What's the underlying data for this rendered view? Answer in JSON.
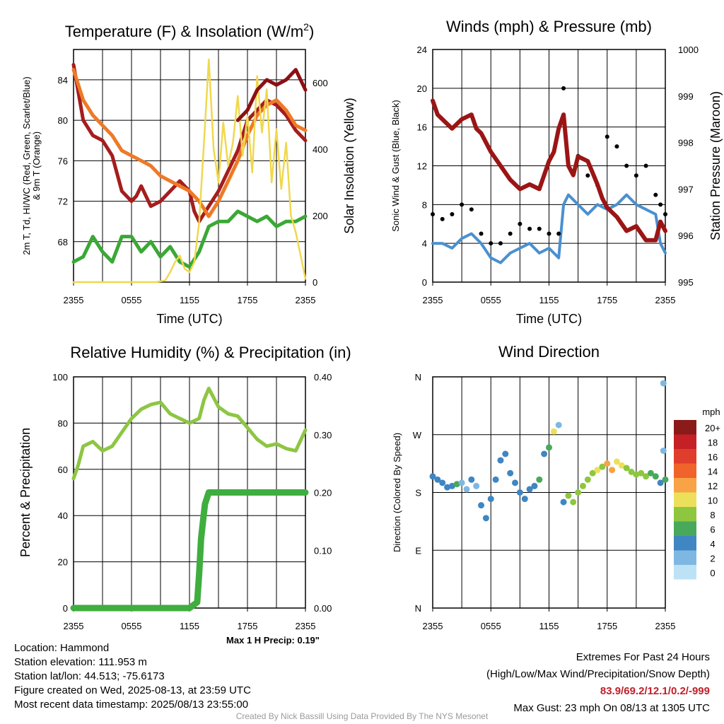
{
  "chart_data": [
    {
      "type": "line",
      "title": "Temperature (F) & Insolation (W/m²)",
      "xlabel": "Time (UTC)",
      "ylabel": "2m T, Td, HI/WC (Red, Green, Scarlet/Blue) & 9m T (Orange)",
      "y2label": "Solar Insolation (Yellow)",
      "x_ticks": [
        "2355",
        "0555",
        "1155",
        "1755",
        "2355"
      ],
      "y_ticks": [
        68,
        72,
        76,
        80,
        84
      ],
      "y2_ticks": [
        0,
        200,
        400,
        600
      ],
      "ylim": [
        64,
        87
      ],
      "y2lim": [
        0,
        700
      ],
      "grid": true,
      "series": [
        {
          "name": "2m T",
          "color": "#a51d1d",
          "axis": "left",
          "x": [
            0,
            1,
            2,
            3,
            4,
            5,
            6,
            6.5,
            7,
            8,
            9,
            10,
            10.5,
            11,
            12,
            12.5,
            13,
            14,
            15,
            16,
            17,
            18,
            19,
            20,
            21,
            22,
            23,
            24
          ],
          "values": [
            85.5,
            80,
            78.5,
            78,
            76.5,
            73,
            72,
            72.5,
            73.5,
            71.5,
            72,
            73,
            73.5,
            74,
            73,
            71,
            70,
            71.5,
            73,
            75,
            77,
            80,
            81,
            82,
            81.5,
            80.5,
            79,
            78
          ]
        },
        {
          "name": "9m T",
          "color": "#ee7a27",
          "axis": "left",
          "x": [
            0,
            1,
            2,
            3,
            4,
            5,
            6,
            7,
            8,
            9,
            10,
            11,
            12,
            13,
            14,
            15,
            16,
            17,
            18,
            19,
            20,
            21,
            22,
            23,
            24
          ],
          "values": [
            85,
            82,
            80.5,
            79.5,
            78.5,
            77,
            76.5,
            76,
            75.5,
            74.5,
            74,
            73.5,
            73,
            72,
            70.5,
            72,
            74,
            76,
            78.5,
            80.5,
            81.5,
            82,
            81,
            79.5,
            79
          ]
        },
        {
          "name": "Td",
          "color": "#3aa835",
          "axis": "left",
          "x": [
            0,
            1,
            2,
            3,
            4,
            5,
            6,
            7,
            8,
            9,
            10,
            11,
            12,
            13,
            14,
            15,
            16,
            17,
            18,
            19,
            20,
            21,
            22,
            23,
            24
          ],
          "values": [
            66,
            66.5,
            68.5,
            67,
            66,
            68.5,
            68.5,
            67,
            68,
            66.5,
            67.5,
            66,
            65.5,
            67,
            69.5,
            70,
            70,
            71,
            70.5,
            70,
            70.5,
            69.5,
            70,
            70,
            70.5
          ]
        },
        {
          "name": "Solar Insolation",
          "color": "#f0d84e",
          "axis": "right",
          "x": [
            0,
            8.5,
            9.5,
            10,
            10.5,
            11,
            11.5,
            12,
            12.5,
            13,
            13.5,
            14,
            14.5,
            15,
            15.5,
            16,
            16.5,
            17,
            17.5,
            18,
            18.5,
            19,
            19.5,
            20,
            20.5,
            21,
            21.5,
            22,
            22.5,
            23,
            23.5,
            24
          ],
          "values": [
            0,
            0,
            5,
            30,
            60,
            80,
            40,
            30,
            60,
            180,
            420,
            670,
            400,
            300,
            480,
            350,
            420,
            560,
            380,
            500,
            330,
            620,
            450,
            580,
            300,
            460,
            280,
            420,
            200,
            150,
            80,
            10
          ]
        },
        {
          "name": "Max Wet-bulb",
          "color": "#8b1014",
          "axis": "left",
          "x": [
            17,
            18,
            19,
            20,
            21,
            22,
            23,
            24
          ],
          "values": [
            80,
            81,
            83,
            84,
            83.5,
            84,
            85,
            83
          ]
        }
      ]
    },
    {
      "type": "line",
      "title": "Winds (mph) & Pressure (mb)",
      "xlabel": "Time (UTC)",
      "ylabel": "Sonic Wind & Gust (Blue, Black)",
      "y2label": "Station Pressure (Maroon)",
      "x_ticks": [
        "2355",
        "0555",
        "1155",
        "1755",
        "2355"
      ],
      "y_ticks": [
        0,
        4,
        8,
        12,
        16,
        20,
        24
      ],
      "y2_ticks": [
        995,
        996,
        997,
        998,
        999,
        1000
      ],
      "ylim": [
        0,
        24
      ],
      "y2lim": [
        995,
        1000
      ],
      "grid": true,
      "series": [
        {
          "name": "Sonic Wind",
          "color": "#4a90d0",
          "axis": "left",
          "x": [
            0,
            1,
            2,
            3,
            4,
            5,
            6,
            7,
            8,
            9,
            10,
            11,
            12,
            13,
            13.5,
            14,
            15,
            16,
            17,
            18,
            19,
            20,
            21,
            22,
            23,
            23.5,
            24
          ],
          "values": [
            4,
            4,
            3.5,
            4.5,
            5,
            4,
            2.5,
            2,
            3,
            3.5,
            4,
            3,
            3.5,
            2.5,
            8,
            9,
            8,
            7,
            8,
            7.5,
            8,
            9,
            8,
            7.5,
            7,
            4,
            3
          ]
        },
        {
          "name": "Gust",
          "color": "#000000",
          "axis": "left",
          "x": [
            0,
            1,
            2,
            3,
            4,
            5,
            6,
            7,
            8,
            9,
            10,
            11,
            12,
            13,
            13.5,
            14,
            15,
            16,
            17,
            18,
            19,
            20,
            21,
            22,
            23,
            23.5,
            24
          ],
          "values": [
            7,
            6.5,
            7,
            8,
            7.5,
            5,
            4,
            4,
            5,
            6,
            5.5,
            5.5,
            5,
            5,
            20,
            12,
            13,
            11,
            10,
            15,
            14,
            12,
            11,
            12,
            9,
            8,
            7
          ]
        },
        {
          "name": "Station Pressure",
          "color": "#9b1515",
          "axis": "right",
          "x": [
            0,
            0.5,
            1,
            2,
            3,
            4,
            4.5,
            5,
            6,
            7,
            8,
            9,
            10,
            11,
            11.5,
            12,
            12.5,
            13,
            13.5,
            14,
            14.5,
            15,
            16,
            17,
            17.5,
            18,
            19,
            20,
            21,
            22,
            23,
            23.5,
            24
          ],
          "values": [
            998.9,
            998.6,
            998.5,
            998.3,
            998.5,
            998.6,
            998.3,
            998.2,
            997.8,
            997.5,
            997.2,
            997.0,
            997.1,
            997.0,
            997.3,
            997.6,
            997.8,
            998.3,
            998.6,
            997.5,
            997.3,
            997.7,
            997.6,
            997.1,
            996.8,
            996.6,
            996.4,
            996.1,
            996.2,
            995.9,
            995.9,
            996.3,
            996.1
          ]
        }
      ]
    },
    {
      "type": "line",
      "title": "Relative Humidity (%) & Precipitation (in)",
      "xlabel": "",
      "ylabel": "Percent & Precipitation",
      "x_ticks": [
        "2355",
        "0555",
        "1155",
        "1755",
        "2355"
      ],
      "y_ticks": [
        0,
        20,
        40,
        60,
        80,
        100
      ],
      "y2_ticks": [
        "0.00",
        "0.10",
        "0.20",
        "0.30",
        "0.40"
      ],
      "ylim": [
        0,
        100
      ],
      "y2lim": [
        0,
        0.4
      ],
      "grid": true,
      "annotation": "Max 1 H Precip: 0.19\"",
      "series": [
        {
          "name": "Relative Humidity",
          "color": "#8dc643",
          "axis": "left",
          "x": [
            0,
            0.5,
            1,
            2,
            3,
            4,
            5,
            6,
            7,
            8,
            9,
            10,
            11,
            12,
            13,
            13.5,
            14,
            15,
            16,
            17,
            18,
            19,
            20,
            21,
            22,
            23,
            24
          ],
          "values": [
            56,
            62,
            70,
            72,
            68,
            70,
            76,
            82,
            86,
            88,
            89,
            84,
            82,
            80,
            82,
            90,
            95,
            87,
            84,
            83,
            78,
            73,
            70,
            71,
            69,
            68,
            77
          ]
        },
        {
          "name": "Precipitation",
          "color": "#3fae3f",
          "axis": "right",
          "x": [
            0,
            12,
            12.8,
            13,
            13.2,
            13.4,
            13.6,
            13.8,
            14,
            15,
            16,
            17,
            18,
            19,
            20,
            21,
            22,
            23,
            24
          ],
          "values": [
            0,
            0,
            0.01,
            0.06,
            0.12,
            0.15,
            0.18,
            0.19,
            0.2,
            0.2,
            0.2,
            0.2,
            0.2,
            0.2,
            0.2,
            0.2,
            0.2,
            0.2,
            0.2
          ]
        }
      ]
    },
    {
      "type": "scatter",
      "title": "Wind Direction",
      "xlabel": "",
      "ylabel": "Direction (Colored By Speed)",
      "x_ticks": [
        "2355",
        "0555",
        "1155",
        "1755",
        "2355"
      ],
      "y_ticks": [
        "N",
        "E",
        "S",
        "W",
        "N"
      ],
      "ylim": [
        0,
        360
      ],
      "legend_title": "mph",
      "legend_labels": [
        "20+",
        "18",
        "16",
        "14",
        "12",
        "10",
        "8",
        "6",
        "4",
        "2",
        "0"
      ],
      "legend_colors": [
        "#8b1a1a",
        "#c42026",
        "#e03d2c",
        "#f0632a",
        "#f8a345",
        "#ece05a",
        "#8ec63f",
        "#48a95a",
        "#3f86c2",
        "#7eb8e2",
        "#bde2f5"
      ],
      "points": [
        {
          "x": 0,
          "dir": 205,
          "speed": 4
        },
        {
          "x": 0.5,
          "dir": 200,
          "speed": 4
        },
        {
          "x": 1,
          "dir": 195,
          "speed": 4
        },
        {
          "x": 1.5,
          "dir": 188,
          "speed": 4
        },
        {
          "x": 2,
          "dir": 190,
          "speed": 3
        },
        {
          "x": 2.5,
          "dir": 193,
          "speed": 5
        },
        {
          "x": 3,
          "dir": 195,
          "speed": 2
        },
        {
          "x": 3.5,
          "dir": 185,
          "speed": 1
        },
        {
          "x": 4,
          "dir": 200,
          "speed": 3
        },
        {
          "x": 4.5,
          "dir": 190,
          "speed": 2
        },
        {
          "x": 5,
          "dir": 160,
          "speed": 4
        },
        {
          "x": 5.5,
          "dir": 140,
          "speed": 3
        },
        {
          "x": 6,
          "dir": 170,
          "speed": 4
        },
        {
          "x": 6.5,
          "dir": 200,
          "speed": 4
        },
        {
          "x": 7,
          "dir": 230,
          "speed": 3
        },
        {
          "x": 7.5,
          "dir": 240,
          "speed": 4
        },
        {
          "x": 8,
          "dir": 210,
          "speed": 4
        },
        {
          "x": 8.5,
          "dir": 195,
          "speed": 4
        },
        {
          "x": 9,
          "dir": 180,
          "speed": 3
        },
        {
          "x": 9.5,
          "dir": 170,
          "speed": 4
        },
        {
          "x": 10,
          "dir": 185,
          "speed": 3
        },
        {
          "x": 10.5,
          "dir": 190,
          "speed": 4
        },
        {
          "x": 11,
          "dir": 200,
          "speed": 5
        },
        {
          "x": 11.5,
          "dir": 240,
          "speed": 4
        },
        {
          "x": 12,
          "dir": 250,
          "speed": 6
        },
        {
          "x": 12.5,
          "dir": 275,
          "speed": 10
        },
        {
          "x": 13,
          "dir": 285,
          "speed": 1
        },
        {
          "x": 13.5,
          "dir": 165,
          "speed": 4
        },
        {
          "x": 14,
          "dir": 175,
          "speed": 7
        },
        {
          "x": 14.5,
          "dir": 165,
          "speed": 7
        },
        {
          "x": 15,
          "dir": 180,
          "speed": 8
        },
        {
          "x": 15.5,
          "dir": 190,
          "speed": 7
        },
        {
          "x": 16,
          "dir": 200,
          "speed": 7
        },
        {
          "x": 16.5,
          "dir": 210,
          "speed": 8
        },
        {
          "x": 17,
          "dir": 215,
          "speed": 9
        },
        {
          "x": 17.5,
          "dir": 220,
          "speed": 8
        },
        {
          "x": 18,
          "dir": 225,
          "speed": 12
        },
        {
          "x": 18.5,
          "dir": 215,
          "speed": 11
        },
        {
          "x": 19,
          "dir": 228,
          "speed": 10
        },
        {
          "x": 19.5,
          "dir": 222,
          "speed": 9
        },
        {
          "x": 20,
          "dir": 218,
          "speed": 8
        },
        {
          "x": 20.5,
          "dir": 212,
          "speed": 8
        },
        {
          "x": 21,
          "dir": 208,
          "speed": 7
        },
        {
          "x": 21.5,
          "dir": 210,
          "speed": 8
        },
        {
          "x": 22,
          "dir": 205,
          "speed": 7
        },
        {
          "x": 22.5,
          "dir": 210,
          "speed": 6
        },
        {
          "x": 23,
          "dir": 205,
          "speed": 5
        },
        {
          "x": 23.5,
          "dir": 195,
          "speed": 3
        },
        {
          "x": 24,
          "dir": 200,
          "speed": 6
        },
        {
          "x": 23.8,
          "dir": 350,
          "speed": 2
        },
        {
          "x": 23.8,
          "dir": 245,
          "speed": 2
        }
      ]
    }
  ],
  "info": {
    "location": "Location: Hammond",
    "elevation": "Station elevation: 111.953 m",
    "latlon": "Station lat/lon: 44.513; -75.6173",
    "created": "Figure created on Wed, 2025-08-13, at 23:59 UTC",
    "recent": "Most recent data timestamp: 2025/08/13 23:55:00"
  },
  "extremes": {
    "title": "Extremes For Past 24 Hours",
    "subtitle": "(High/Low/Max Wind/Precipitation/Snow Depth)",
    "values": "83.9/69.2/12.1/0.2/-999",
    "values_color": "#c0202a",
    "max_gust": "Max Gust: 23 mph On 08/13 at 1305 UTC"
  },
  "credit": "Created By Nick Bassill Using Data Provided By The NYS Mesonet"
}
